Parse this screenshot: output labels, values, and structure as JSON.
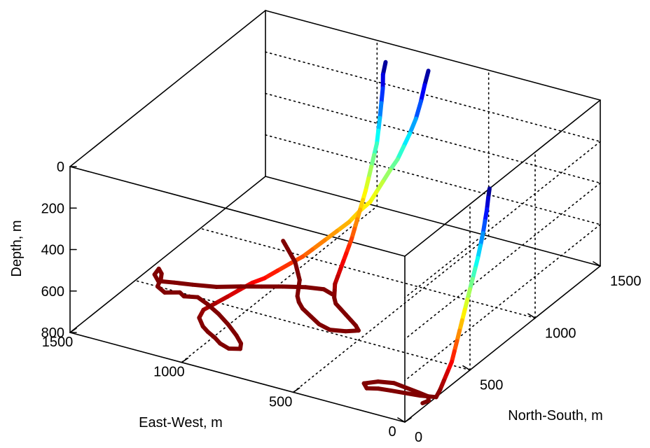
{
  "chart_data": {
    "type": "line3d",
    "title": "",
    "xlabel": "East-West, m",
    "ylabel": "North-South, m",
    "zlabel": "Depth, m",
    "xlim": [
      0,
      1500
    ],
    "ylim": [
      0,
      1500
    ],
    "zlim": [
      0,
      800
    ],
    "z_reversed": true,
    "grid": true,
    "colormap": "jet (blue = shallow, red = deep)",
    "x_ticks": [
      {
        "value": 0,
        "label": "0"
      },
      {
        "value": 500,
        "label": "500"
      },
      {
        "value": 1000,
        "label": "1000"
      },
      {
        "value": 1500,
        "label": "1500"
      }
    ],
    "y_ticks": [
      {
        "value": 0,
        "label": "0"
      },
      {
        "value": 500,
        "label": "500"
      },
      {
        "value": 1000,
        "label": "1000"
      },
      {
        "value": 1500,
        "label": "1500"
      }
    ],
    "z_ticks": [
      {
        "value": 0,
        "label": "0"
      },
      {
        "value": 200,
        "label": "200"
      },
      {
        "value": 400,
        "label": "400"
      },
      {
        "value": 600,
        "label": "600"
      },
      {
        "value": 800,
        "label": "800"
      }
    ],
    "series": [
      {
        "points": [
          [
            700,
            1380,
            0
          ],
          [
            705,
            1360,
            60
          ],
          [
            710,
            1340,
            130
          ],
          [
            715,
            1310,
            200
          ],
          [
            725,
            1280,
            260
          ],
          [
            735,
            1250,
            310
          ],
          [
            745,
            1220,
            360
          ],
          [
            760,
            1190,
            400
          ],
          [
            770,
            1150,
            440
          ],
          [
            775,
            1110,
            470
          ],
          [
            780,
            1070,
            500
          ],
          [
            795,
            1020,
            520
          ],
          [
            810,
            960,
            550
          ],
          [
            830,
            900,
            570
          ],
          [
            850,
            840,
            590
          ],
          [
            870,
            780,
            610
          ],
          [
            890,
            740,
            630
          ],
          [
            920,
            700,
            650
          ],
          [
            950,
            650,
            670
          ],
          [
            980,
            600,
            690
          ],
          [
            1010,
            560,
            700
          ],
          [
            1040,
            520,
            720
          ],
          [
            1070,
            470,
            740
          ],
          [
            1100,
            430,
            760
          ],
          [
            1130,
            390,
            780
          ],
          [
            1120,
            340,
            790
          ],
          [
            1080,
            300,
            800
          ],
          [
            1040,
            270,
            800
          ],
          [
            990,
            240,
            800
          ],
          [
            950,
            210,
            800
          ],
          [
            900,
            190,
            800
          ],
          [
            860,
            210,
            800
          ],
          [
            880,
            250,
            800
          ],
          [
            930,
            300,
            800
          ],
          [
            1000,
            360,
            800
          ],
          [
            1080,
            420,
            800
          ],
          [
            1160,
            470,
            800
          ],
          [
            1220,
            500,
            800
          ],
          [
            1270,
            480,
            800
          ],
          [
            1300,
            500,
            800
          ],
          [
            1350,
            470,
            800
          ],
          [
            1400,
            500,
            800
          ],
          [
            1420,
            560,
            800
          ],
          [
            1440,
            600,
            800
          ],
          [
            1470,
            630,
            800
          ],
          [
            1460,
            580,
            800
          ],
          [
            1420,
            540,
            800
          ],
          [
            1360,
            560,
            800
          ],
          [
            1290,
            580,
            800
          ],
          [
            1200,
            610,
            800
          ],
          [
            1120,
            660,
            800
          ],
          [
            1050,
            700,
            800
          ],
          [
            980,
            740,
            800
          ],
          [
            900,
            780,
            800
          ],
          [
            830,
            800,
            800
          ],
          [
            780,
            780,
            800
          ]
        ]
      },
      {
        "points": [
          [
            880,
            1360,
            0
          ],
          [
            880,
            1340,
            50
          ],
          [
            875,
            1330,
            110
          ],
          [
            870,
            1310,
            170
          ],
          [
            865,
            1290,
            230
          ],
          [
            860,
            1270,
            280
          ],
          [
            855,
            1250,
            330
          ],
          [
            850,
            1220,
            370
          ],
          [
            845,
            1190,
            410
          ],
          [
            840,
            1160,
            450
          ],
          [
            835,
            1130,
            490
          ],
          [
            830,
            1100,
            520
          ],
          [
            825,
            1070,
            550
          ],
          [
            820,
            1040,
            580
          ],
          [
            815,
            1010,
            610
          ],
          [
            810,
            980,
            640
          ],
          [
            805,
            950,
            660
          ],
          [
            800,
            920,
            680
          ],
          [
            795,
            890,
            700
          ],
          [
            790,
            860,
            720
          ],
          [
            785,
            830,
            740
          ],
          [
            780,
            800,
            760
          ],
          [
            770,
            780,
            780
          ],
          [
            760,
            760,
            800
          ],
          [
            730,
            720,
            800
          ],
          [
            690,
            690,
            800
          ],
          [
            650,
            660,
            800
          ],
          [
            610,
            630,
            800
          ],
          [
            570,
            600,
            800
          ],
          [
            540,
            570,
            800
          ],
          [
            580,
            540,
            800
          ],
          [
            640,
            520,
            800
          ],
          [
            700,
            540,
            800
          ],
          [
            760,
            580,
            800
          ],
          [
            820,
            620,
            800
          ],
          [
            860,
            660,
            800
          ],
          [
            890,
            700,
            800
          ],
          [
            910,
            740,
            800
          ],
          [
            930,
            780,
            800
          ],
          [
            950,
            820,
            800
          ],
          [
            980,
            860,
            800
          ],
          [
            1010,
            900,
            800
          ],
          [
            1040,
            940,
            800
          ],
          [
            1080,
            980,
            800
          ],
          [
            1120,
            1020,
            800
          ],
          [
            1150,
            1050,
            800
          ],
          [
            1170,
            1070,
            800
          ]
        ]
      },
      {
        "points": [
          [
            0,
            650,
            0
          ],
          [
            0,
            640,
            40
          ],
          [
            0,
            630,
            90
          ],
          [
            0,
            615,
            140
          ],
          [
            0,
            600,
            190
          ],
          [
            0,
            580,
            240
          ],
          [
            0,
            560,
            290
          ],
          [
            0,
            540,
            330
          ],
          [
            0,
            520,
            370
          ],
          [
            0,
            500,
            410
          ],
          [
            0,
            480,
            450
          ],
          [
            0,
            460,
            490
          ],
          [
            0,
            440,
            530
          ],
          [
            0,
            420,
            570
          ],
          [
            0,
            400,
            610
          ],
          [
            0,
            380,
            650
          ],
          [
            0,
            360,
            690
          ],
          [
            0,
            330,
            720
          ],
          [
            0,
            300,
            750
          ],
          [
            0,
            270,
            780
          ],
          [
            0,
            240,
            800
          ],
          [
            60,
            220,
            800
          ],
          [
            120,
            210,
            800
          ],
          [
            180,
            200,
            800
          ],
          [
            230,
            190,
            800
          ],
          [
            270,
            170,
            800
          ],
          [
            300,
            200,
            800
          ],
          [
            260,
            240,
            800
          ],
          [
            200,
            260,
            800
          ],
          [
            140,
            250,
            800
          ],
          [
            80,
            240,
            800
          ],
          [
            30,
            230,
            800
          ],
          [
            10,
            200,
            800
          ],
          [
            20,
            170,
            800
          ]
        ]
      }
    ]
  }
}
